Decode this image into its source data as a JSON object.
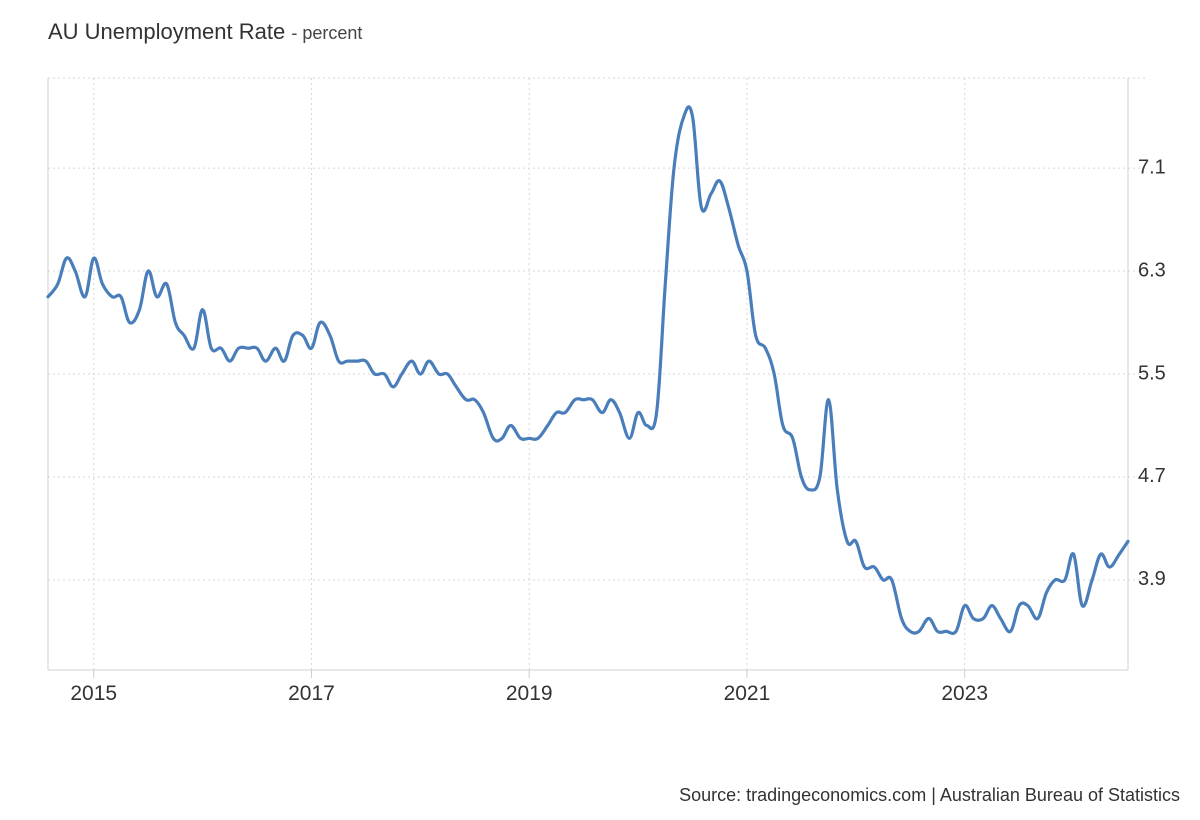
{
  "chart_data": {
    "type": "line",
    "title": "AU Unemployment Rate",
    "unit_label": "- percent",
    "source": "Source: tradingeconomics.com | Australian Bureau of Statistics",
    "y_ticks": [
      3.9,
      4.7,
      5.5,
      6.3,
      7.1
    ],
    "y_tick_labels": [
      "3.9",
      "4.7",
      "5.5",
      "6.3",
      "7.1"
    ],
    "x_ticks": [
      2015,
      2017,
      2019,
      2021,
      2023
    ],
    "x_tick_labels": [
      "2015",
      "2017",
      "2019",
      "2021",
      "2023"
    ],
    "xlim": [
      2014.58,
      2024.5
    ],
    "ylim": [
      3.2,
      7.8
    ],
    "grid": true,
    "line_color": "#4a7ebb",
    "series": [
      {
        "x": [
          2014.58,
          2014.67,
          2014.75,
          2014.83,
          2014.92,
          2015.0,
          2015.08,
          2015.17,
          2015.25,
          2015.33,
          2015.42,
          2015.5,
          2015.58,
          2015.67,
          2015.75,
          2015.83,
          2015.92,
          2016.0,
          2016.08,
          2016.17,
          2016.25,
          2016.33,
          2016.42,
          2016.5,
          2016.58,
          2016.67,
          2016.75,
          2016.83,
          2016.92,
          2017.0,
          2017.08,
          2017.17,
          2017.25,
          2017.33,
          2017.42,
          2017.5,
          2017.58,
          2017.67,
          2017.75,
          2017.83,
          2017.92,
          2018.0,
          2018.08,
          2018.17,
          2018.25,
          2018.33,
          2018.42,
          2018.5,
          2018.58,
          2018.67,
          2018.75,
          2018.83,
          2018.92,
          2019.0,
          2019.08,
          2019.17,
          2019.25,
          2019.33,
          2019.42,
          2019.5,
          2019.58,
          2019.67,
          2019.75,
          2019.83,
          2019.92,
          2020.0,
          2020.08,
          2020.17,
          2020.25,
          2020.33,
          2020.42,
          2020.5,
          2020.58,
          2020.67,
          2020.75,
          2020.83,
          2020.92,
          2021.0,
          2021.08,
          2021.17,
          2021.25,
          2021.33,
          2021.42,
          2021.5,
          2021.58,
          2021.67,
          2021.75,
          2021.83,
          2021.92,
          2022.0,
          2022.08,
          2022.17,
          2022.25,
          2022.33,
          2022.42,
          2022.5,
          2022.58,
          2022.67,
          2022.75,
          2022.83,
          2022.92,
          2023.0,
          2023.08,
          2023.17,
          2023.25,
          2023.33,
          2023.42,
          2023.5,
          2023.58,
          2023.67,
          2023.75,
          2023.83,
          2023.92,
          2024.0,
          2024.08,
          2024.17,
          2024.25,
          2024.33,
          2024.42,
          2024.5
        ],
        "y": [
          6.1,
          6.2,
          6.4,
          6.3,
          6.1,
          6.4,
          6.2,
          6.1,
          6.1,
          5.9,
          6.0,
          6.3,
          6.1,
          6.2,
          5.9,
          5.8,
          5.7,
          6.0,
          5.7,
          5.7,
          5.6,
          5.7,
          5.7,
          5.7,
          5.6,
          5.7,
          5.6,
          5.8,
          5.8,
          5.7,
          5.9,
          5.8,
          5.6,
          5.6,
          5.6,
          5.6,
          5.5,
          5.5,
          5.4,
          5.5,
          5.6,
          5.5,
          5.6,
          5.5,
          5.5,
          5.4,
          5.3,
          5.3,
          5.2,
          5.0,
          5.0,
          5.1,
          5.0,
          5.0,
          5.0,
          5.1,
          5.2,
          5.2,
          5.3,
          5.3,
          5.3,
          5.2,
          5.3,
          5.2,
          5.0,
          5.2,
          5.1,
          5.2,
          6.2,
          7.1,
          7.5,
          7.5,
          6.8,
          6.9,
          7.0,
          6.8,
          6.5,
          6.3,
          5.8,
          5.7,
          5.5,
          5.1,
          5.0,
          4.7,
          4.6,
          4.7,
          5.3,
          4.6,
          4.2,
          4.2,
          4.0,
          4.0,
          3.9,
          3.9,
          3.6,
          3.5,
          3.5,
          3.6,
          3.5,
          3.5,
          3.5,
          3.7,
          3.6,
          3.6,
          3.7,
          3.6,
          3.5,
          3.7,
          3.7,
          3.6,
          3.8,
          3.9,
          3.9,
          4.1,
          3.7,
          3.9,
          4.1,
          4.0,
          4.1,
          4.2
        ]
      }
    ]
  }
}
